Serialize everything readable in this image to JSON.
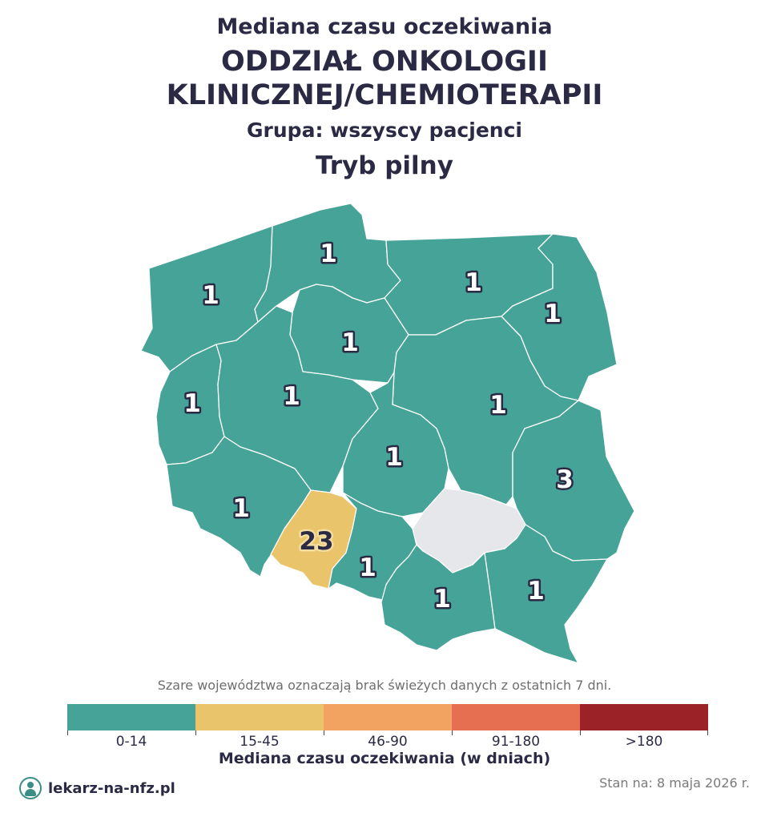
{
  "header": {
    "title_line1": "Mediana czasu oczekiwania",
    "title_line2a": "ODDZIAŁ ONKOLOGII",
    "title_line2b": "KLINICZNEJ/CHEMIOTERAPII",
    "group": "Grupa: wszyscy pacjenci",
    "mode": "Tryb pilny"
  },
  "map": {
    "regions": [
      {
        "id": "zachodniopomorskie",
        "value": "1",
        "color": "#46a397"
      },
      {
        "id": "pomorskie",
        "value": "1",
        "color": "#46a397"
      },
      {
        "id": "warminsko-mazurskie",
        "value": "1",
        "color": "#46a397"
      },
      {
        "id": "podlaskie",
        "value": "1",
        "color": "#46a397"
      },
      {
        "id": "kujawsko-pomorskie",
        "value": "1",
        "color": "#46a397"
      },
      {
        "id": "lubuskie",
        "value": "1",
        "color": "#46a397"
      },
      {
        "id": "wielkopolskie",
        "value": "1",
        "color": "#46a397"
      },
      {
        "id": "mazowieckie",
        "value": "1",
        "color": "#46a397"
      },
      {
        "id": "lodzkie",
        "value": "1",
        "color": "#46a397"
      },
      {
        "id": "lubelskie",
        "value": "3",
        "color": "#46a397"
      },
      {
        "id": "dolnoslaskie",
        "value": "1",
        "color": "#46a397"
      },
      {
        "id": "opolskie",
        "value": "23",
        "color": "#e9c46a"
      },
      {
        "id": "slaskie",
        "value": "1",
        "color": "#46a397"
      },
      {
        "id": "swietokrzyskie",
        "value": "",
        "color": "#e6e7ea"
      },
      {
        "id": "malopolskie",
        "value": "1",
        "color": "#46a397"
      },
      {
        "id": "podkarpackie",
        "value": "1",
        "color": "#46a397"
      }
    ]
  },
  "note": "Szare województwa oznaczają brak świeżych danych z ostatnich 7 dni.",
  "legend": {
    "title": "Mediana czasu oczekiwania (w dniach)",
    "items": [
      {
        "label": "0-14",
        "color": "#46a397"
      },
      {
        "label": "15-45",
        "color": "#e9c46a"
      },
      {
        "label": "46-90",
        "color": "#f2a261"
      },
      {
        "label": "91-180",
        "color": "#e76f51"
      },
      {
        "label": ">180",
        "color": "#9b2226"
      }
    ]
  },
  "footer": {
    "brand": "lekarz-na-nfz.pl",
    "brand_icon": "doctor-icon",
    "date": "Stan na: 8 maja 2026 r."
  }
}
